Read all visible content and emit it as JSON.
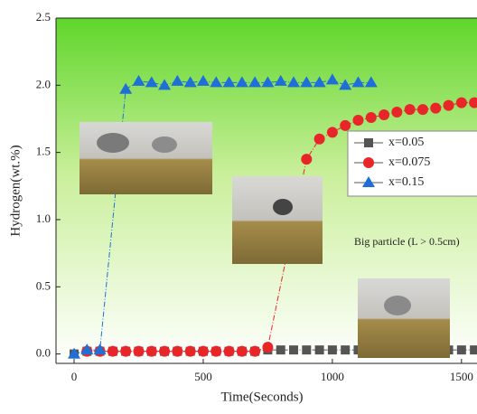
{
  "chart_data": {
    "type": "scatter",
    "x_label": "Time(Seconds)",
    "y_label": "Hydrogen(wt.%)",
    "annotation": "Big particle (L > 0.5cm)",
    "xlim": [
      -70,
      1560
    ],
    "ylim": [
      -0.07,
      2.5
    ],
    "xticks": [
      0,
      500,
      1000,
      1500
    ],
    "yticks": [
      {
        "value": 0,
        "label": "0.0"
      },
      {
        "value": 0.5,
        "label": "0.5"
      },
      {
        "value": 1,
        "label": "1.0"
      },
      {
        "value": 1.5,
        "label": "1.5"
      },
      {
        "value": 2,
        "label": "2.0"
      },
      {
        "value": 2.5,
        "label": "2.5"
      }
    ],
    "series": [
      {
        "name": "x=0.05",
        "color": "#555555",
        "marker": "square",
        "x": [
          0,
          50,
          100,
          150,
          200,
          250,
          300,
          350,
          400,
          450,
          500,
          550,
          600,
          650,
          700,
          750,
          800,
          850,
          900,
          950,
          1000,
          1050,
          1100,
          1150,
          1200,
          1250,
          1300,
          1350,
          1400,
          1450,
          1500,
          1550
        ],
        "values": [
          0,
          0.02,
          0.02,
          0.02,
          0.02,
          0.02,
          0.02,
          0.02,
          0.02,
          0.02,
          0.02,
          0.02,
          0.02,
          0.02,
          0.02,
          0.03,
          0.03,
          0.03,
          0.03,
          0.03,
          0.03,
          0.03,
          0.03,
          0.03,
          0.03,
          0.03,
          0.03,
          0.03,
          0.03,
          0.03,
          0.03,
          0.03
        ]
      },
      {
        "name": "x=0.075",
        "color": "#e8262a",
        "marker": "circle",
        "x": [
          50,
          100,
          150,
          200,
          250,
          300,
          350,
          400,
          450,
          500,
          550,
          600,
          650,
          700,
          750,
          900,
          950,
          1000,
          1050,
          1100,
          1150,
          1200,
          1250,
          1300,
          1350,
          1400,
          1450,
          1500,
          1550
        ],
        "values": [
          0.02,
          0.02,
          0.02,
          0.02,
          0.02,
          0.02,
          0.02,
          0.02,
          0.02,
          0.02,
          0.02,
          0.02,
          0.02,
          0.02,
          0.05,
          1.45,
          1.6,
          1.65,
          1.7,
          1.74,
          1.76,
          1.78,
          1.8,
          1.82,
          1.82,
          1.83,
          1.85,
          1.87,
          1.87
        ]
      },
      {
        "name": "x=0.15",
        "color": "#1f6fd6",
        "marker": "triangle",
        "x": [
          0,
          50,
          100,
          200,
          250,
          300,
          350,
          400,
          450,
          500,
          550,
          600,
          650,
          700,
          750,
          800,
          850,
          900,
          950,
          1000,
          1050,
          1100,
          1150
        ],
        "values": [
          0,
          0.03,
          0.03,
          1.97,
          2.03,
          2.02,
          2.0,
          2.03,
          2.02,
          2.03,
          2.02,
          2.02,
          2.02,
          2.02,
          2.02,
          2.03,
          2.02,
          2.02,
          2.02,
          2.04,
          2.0,
          2.02,
          2.02
        ]
      }
    ]
  }
}
